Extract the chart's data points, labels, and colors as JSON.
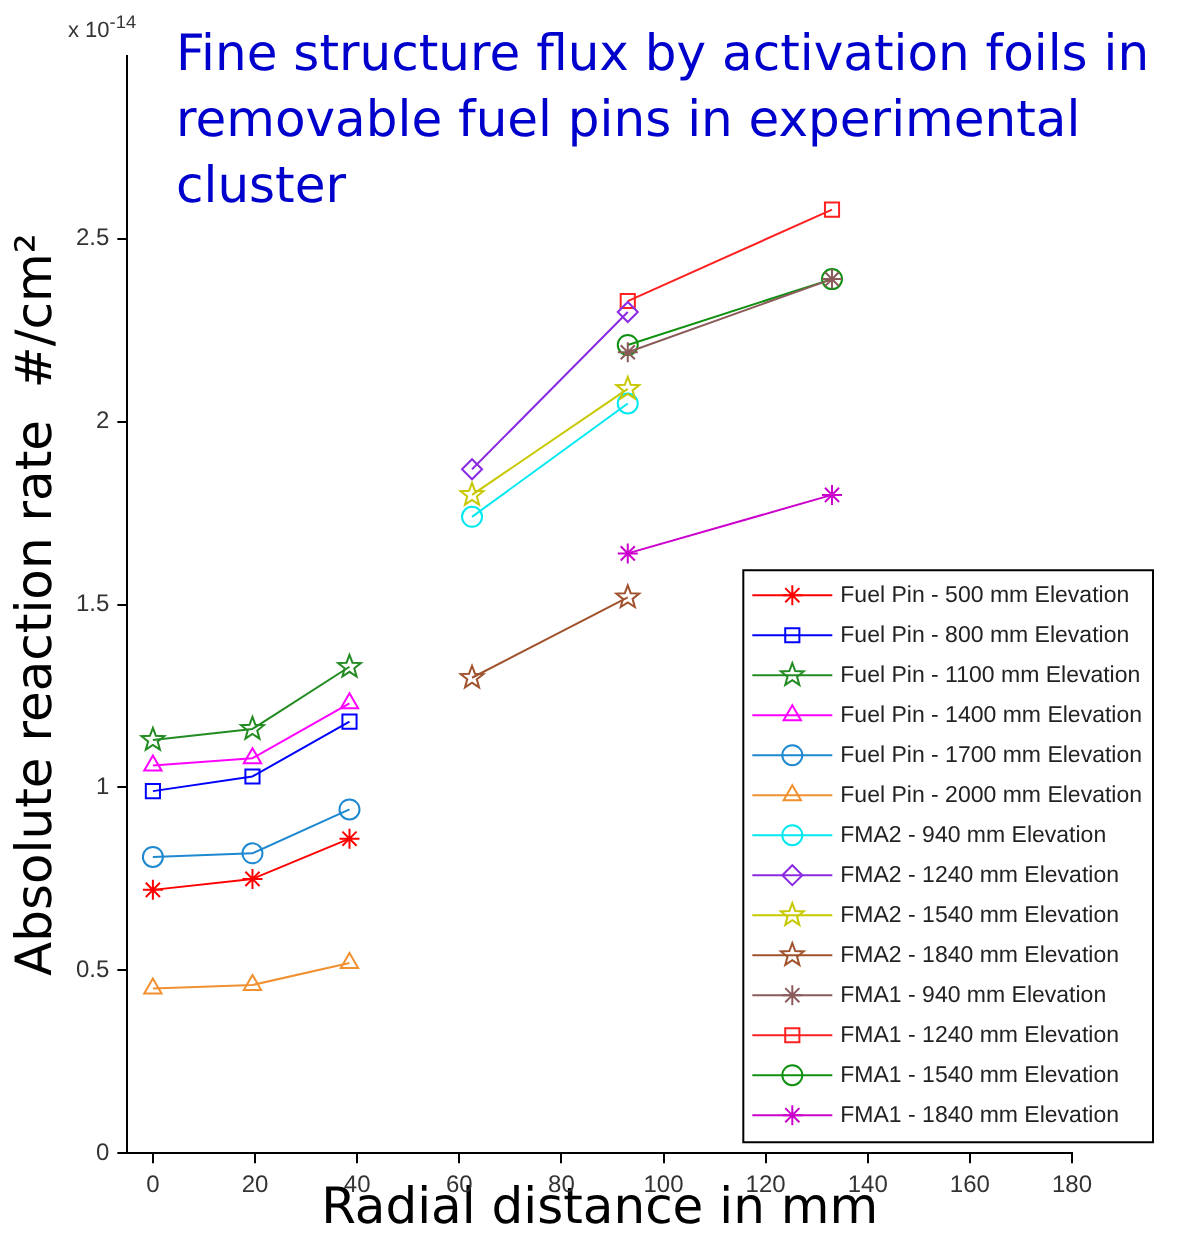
{
  "chart_data": {
    "type": "line",
    "title": "Fine structure flux by activation foils in removable fuel pins in experimental cluster",
    "xlabel": "Radial distance in mm",
    "ylabel": "Absolute reaction rate  #/cm²",
    "annotations": [
      "x 10$^{-14}$"
    ],
    "xlim": [
      -5,
      180
    ],
    "xticks": [
      0,
      20,
      40,
      60,
      80,
      100,
      120,
      140,
      160,
      180
    ],
    "ylim": [
      0,
      3
    ],
    "yticks": [
      0,
      0.5,
      1,
      1.5,
      2,
      2.5
    ],
    "grid": false,
    "legend": "bottom right",
    "line_style": "solid",
    "series": [
      {
        "name": "Fuel Pin - 500 mm Elevation",
        "color": "#ff0000",
        "marker": "cross",
        "x": [
          0,
          19.5,
          38.5
        ],
        "values": [
          0.72,
          0.75,
          0.86
        ]
      },
      {
        "name": "Fuel Pin - 800 mm Elevation",
        "color": "#0000ff",
        "marker": "square",
        "x": [
          0,
          19.5,
          38.5
        ],
        "values": [
          0.99,
          1.03,
          1.18
        ]
      },
      {
        "name": "Fuel Pin - 1100 mm Elevation",
        "color": "#228b22",
        "marker": "star",
        "x": [
          0,
          19.5,
          38.5
        ],
        "values": [
          1.13,
          1.16,
          1.33
        ]
      },
      {
        "name": "Fuel Pin - 1400 mm Elevation",
        "color": "#ff00ff",
        "marker": "triangle",
        "x": [
          0,
          19.5,
          38.5
        ],
        "values": [
          1.06,
          1.08,
          1.23
        ]
      },
      {
        "name": "Fuel Pin - 1700 mm Elevation",
        "color": "#1e88d0",
        "marker": "circle",
        "x": [
          0,
          19.5,
          38.5
        ],
        "values": [
          0.81,
          0.82,
          0.94
        ]
      },
      {
        "name": "Fuel Pin - 2000 mm Elevation",
        "color": "#f09030",
        "marker": "triangle",
        "x": [
          0,
          19.5,
          38.5
        ],
        "values": [
          0.45,
          0.46,
          0.52
        ]
      },
      {
        "name": "FMA2 - 940 mm Elevation",
        "color": "#00e8f0",
        "marker": "circle",
        "x": [
          62.5,
          93
        ],
        "values": [
          1.74,
          2.05
        ]
      },
      {
        "name": "FMA2 - 1240 mm Elevation",
        "color": "#8a2be2",
        "marker": "diamond",
        "x": [
          62.5,
          93
        ],
        "values": [
          1.87,
          2.3
        ]
      },
      {
        "name": "FMA2 - 1540 mm Elevation",
        "color": "#c8c800",
        "marker": "star",
        "x": [
          62.5,
          93
        ],
        "values": [
          1.8,
          2.09
        ]
      },
      {
        "name": "FMA2 - 1840 mm Elevation",
        "color": "#a0522d",
        "marker": "star",
        "x": [
          62.5,
          93
        ],
        "values": [
          1.3,
          1.52
        ]
      },
      {
        "name": "FMA1 - 940 mm Elevation",
        "color": "#8b5a5a",
        "marker": "cross",
        "x": [
          93,
          133
        ],
        "values": [
          2.19,
          2.39
        ]
      },
      {
        "name": "FMA1 - 1240 mm Elevation",
        "color": "#ff2020",
        "marker": "square",
        "x": [
          93,
          133
        ],
        "values": [
          2.33,
          2.58
        ]
      },
      {
        "name": "FMA1 - 1540 mm Elevation",
        "color": "#109010",
        "marker": "circle",
        "x": [
          93,
          133
        ],
        "values": [
          2.21,
          2.39
        ]
      },
      {
        "name": "FMA1 - 1840 mm Elevation",
        "color": "#cc00cc",
        "marker": "cross",
        "x": [
          93,
          133
        ],
        "values": [
          1.64,
          1.8
        ]
      }
    ]
  }
}
